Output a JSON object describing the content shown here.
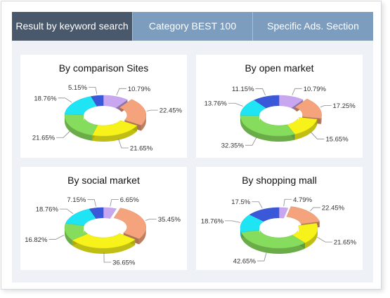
{
  "tabs": [
    {
      "label": "Result by keyword search",
      "active": true
    },
    {
      "label": "Category BEST 100",
      "active": false
    },
    {
      "label": "Specific Ads. Section",
      "active": false
    }
  ],
  "colors": {
    "purple": "#c9a7f0",
    "orange": "#f4a37c",
    "yellow": "#f6f21a",
    "green": "#86dc5c",
    "cyan": "#1ee4f4",
    "blue": "#3a58d8"
  },
  "chart_data": [
    {
      "type": "pie",
      "title": "By comparison Sites",
      "slices": [
        {
          "label": "10.79%",
          "value": 10.79,
          "color": "purple"
        },
        {
          "label": "22.45%",
          "value": 22.45,
          "color": "orange"
        },
        {
          "label": "21.65%",
          "value": 21.65,
          "color": "yellow"
        },
        {
          "label": "21.65%",
          "value": 21.65,
          "color": "green"
        },
        {
          "label": "18.76%",
          "value": 18.76,
          "color": "cyan"
        },
        {
          "label": "5.15%",
          "value": 5.15,
          "color": "blue"
        }
      ]
    },
    {
      "type": "pie",
      "title": "By open market",
      "slices": [
        {
          "label": "10.79%",
          "value": 10.79,
          "color": "purple"
        },
        {
          "label": "17.25%",
          "value": 17.25,
          "color": "orange"
        },
        {
          "label": "15.65%",
          "value": 15.65,
          "color": "yellow"
        },
        {
          "label": "32.35%",
          "value": 32.35,
          "color": "green"
        },
        {
          "label": "13.76%",
          "value": 13.76,
          "color": "cyan"
        },
        {
          "label": "11.15%",
          "value": 11.15,
          "color": "blue"
        }
      ]
    },
    {
      "type": "pie",
      "title": "By social market",
      "slices": [
        {
          "label": "6.65%",
          "value": 6.65,
          "color": "purple"
        },
        {
          "label": "35.45%",
          "value": 35.45,
          "color": "orange"
        },
        {
          "label": "36.65%",
          "value": 36.65,
          "color": "yellow"
        },
        {
          "label": "16.82%",
          "value": 16.82,
          "color": "green"
        },
        {
          "label": "18.76%",
          "value": 18.76,
          "color": "cyan"
        },
        {
          "label": "7.15%",
          "value": 7.15,
          "color": "blue"
        }
      ]
    },
    {
      "type": "pie",
      "title": "By shopping mall",
      "slices": [
        {
          "label": "4.79%",
          "value": 4.79,
          "color": "purple"
        },
        {
          "label": "22.45%",
          "value": 22.45,
          "color": "orange"
        },
        {
          "label": "21.65%",
          "value": 21.65,
          "color": "yellow"
        },
        {
          "label": "42.65%",
          "value": 42.65,
          "color": "green"
        },
        {
          "label": "18.76%",
          "value": 18.76,
          "color": "cyan"
        },
        {
          "label": "17.5%",
          "value": 17.5,
          "color": "blue"
        }
      ]
    }
  ]
}
